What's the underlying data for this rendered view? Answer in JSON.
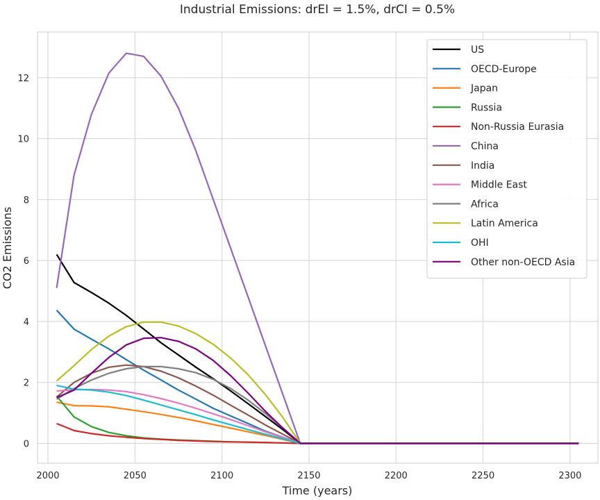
{
  "chart_data": {
    "type": "line",
    "title": "Industrial Emissions: drEI = 1.5%, drCI = 0.5%",
    "xlabel": "Time (years)",
    "ylabel": "CO2 Emissions",
    "xlim": [
      1994,
      2316
    ],
    "ylim": [
      -0.65,
      13.5
    ],
    "xticks": [
      2000,
      2050,
      2100,
      2150,
      2200,
      2250,
      2300
    ],
    "yticks": [
      0,
      2,
      4,
      6,
      8,
      10,
      12
    ],
    "grid": true,
    "legend_position": "top-right",
    "x": [
      2005,
      2015,
      2025,
      2035,
      2045,
      2055,
      2065,
      2075,
      2085,
      2095,
      2105,
      2115,
      2125,
      2135,
      2145,
      2155,
      2165,
      2175,
      2185,
      2195,
      2205,
      2215,
      2225,
      2235,
      2245,
      2255,
      2265,
      2275,
      2285,
      2295,
      2305
    ],
    "series": [
      {
        "name": "US",
        "color": "#000000",
        "values": [
          6.2,
          5.28,
          4.95,
          4.6,
          4.2,
          3.75,
          3.3,
          2.9,
          2.5,
          2.12,
          1.72,
          1.3,
          0.88,
          0.45,
          0,
          0,
          0,
          0,
          0,
          0,
          0,
          0,
          0,
          0,
          0,
          0,
          0,
          0,
          0,
          0,
          0
        ]
      },
      {
        "name": "OECD-Europe",
        "color": "#1f77b4",
        "values": [
          4.37,
          3.75,
          3.42,
          3.1,
          2.75,
          2.4,
          2.08,
          1.75,
          1.45,
          1.15,
          0.9,
          0.65,
          0.4,
          0.2,
          0,
          0,
          0,
          0,
          0,
          0,
          0,
          0,
          0,
          0,
          0,
          0,
          0,
          0,
          0,
          0,
          0
        ]
      },
      {
        "name": "Japan",
        "color": "#ff7f0e",
        "values": [
          1.35,
          1.24,
          1.23,
          1.2,
          1.12,
          1.04,
          0.95,
          0.85,
          0.74,
          0.62,
          0.5,
          0.38,
          0.26,
          0.13,
          0,
          0,
          0,
          0,
          0,
          0,
          0,
          0,
          0,
          0,
          0,
          0,
          0,
          0,
          0,
          0,
          0
        ]
      },
      {
        "name": "Russia",
        "color": "#2ca02c",
        "values": [
          1.55,
          0.87,
          0.55,
          0.36,
          0.25,
          0.18,
          0.14,
          0.11,
          0.09,
          0.07,
          0.05,
          0.04,
          0.03,
          0.015,
          0,
          0,
          0,
          0,
          0,
          0,
          0,
          0,
          0,
          0,
          0,
          0,
          0,
          0,
          0,
          0,
          0
        ]
      },
      {
        "name": "Non-Russia Eurasia",
        "color": "#d62728",
        "values": [
          0.65,
          0.42,
          0.32,
          0.25,
          0.2,
          0.16,
          0.13,
          0.1,
          0.08,
          0.06,
          0.05,
          0.04,
          0.03,
          0.015,
          0,
          0,
          0,
          0,
          0,
          0,
          0,
          0,
          0,
          0,
          0,
          0,
          0,
          0,
          0,
          0,
          0
        ]
      },
      {
        "name": "China",
        "color": "#9467bd",
        "values": [
          5.1,
          8.8,
          10.8,
          12.15,
          12.8,
          12.7,
          12.05,
          11.0,
          9.6,
          8.0,
          6.4,
          4.8,
          3.2,
          1.6,
          0,
          0,
          0,
          0,
          0,
          0,
          0,
          0,
          0,
          0,
          0,
          0,
          0,
          0,
          0,
          0,
          0
        ]
      },
      {
        "name": "India",
        "color": "#8c564b",
        "values": [
          1.52,
          2.0,
          2.3,
          2.5,
          2.57,
          2.52,
          2.37,
          2.15,
          1.88,
          1.58,
          1.25,
          0.93,
          0.6,
          0.3,
          0,
          0,
          0,
          0,
          0,
          0,
          0,
          0,
          0,
          0,
          0,
          0,
          0,
          0,
          0,
          0,
          0
        ]
      },
      {
        "name": "Middle East",
        "color": "#e377c2",
        "values": [
          1.72,
          1.76,
          1.77,
          1.75,
          1.7,
          1.6,
          1.47,
          1.32,
          1.15,
          0.97,
          0.78,
          0.58,
          0.38,
          0.19,
          0,
          0,
          0,
          0,
          0,
          0,
          0,
          0,
          0,
          0,
          0,
          0,
          0,
          0,
          0,
          0,
          0
        ]
      },
      {
        "name": "Africa",
        "color": "#7f7f7f",
        "values": [
          1.45,
          1.8,
          2.08,
          2.3,
          2.45,
          2.52,
          2.52,
          2.45,
          2.32,
          2.1,
          1.8,
          1.42,
          0.98,
          0.5,
          0,
          0,
          0,
          0,
          0,
          0,
          0,
          0,
          0,
          0,
          0,
          0,
          0,
          0,
          0,
          0,
          0
        ]
      },
      {
        "name": "Latin America",
        "color": "#bcbd22",
        "values": [
          2.05,
          2.55,
          3.08,
          3.52,
          3.83,
          3.98,
          3.98,
          3.85,
          3.6,
          3.25,
          2.8,
          2.25,
          1.6,
          0.85,
          0,
          0,
          0,
          0,
          0,
          0,
          0,
          0,
          0,
          0,
          0,
          0,
          0,
          0,
          0,
          0,
          0
        ]
      },
      {
        "name": "OHI",
        "color": "#17becf",
        "values": [
          1.9,
          1.78,
          1.75,
          1.68,
          1.57,
          1.42,
          1.26,
          1.1,
          0.94,
          0.77,
          0.61,
          0.45,
          0.3,
          0.15,
          0,
          0,
          0,
          0,
          0,
          0,
          0,
          0,
          0,
          0,
          0,
          0,
          0,
          0,
          0,
          0,
          0
        ]
      },
      {
        "name": "Other non-OECD Asia",
        "color": "#800080",
        "values": [
          1.5,
          1.75,
          2.3,
          2.82,
          3.23,
          3.45,
          3.47,
          3.35,
          3.1,
          2.72,
          2.22,
          1.65,
          1.05,
          0.5,
          0,
          0,
          0,
          0,
          0,
          0,
          0,
          0,
          0,
          0,
          0,
          0,
          0,
          0,
          0,
          0,
          0
        ]
      }
    ]
  }
}
